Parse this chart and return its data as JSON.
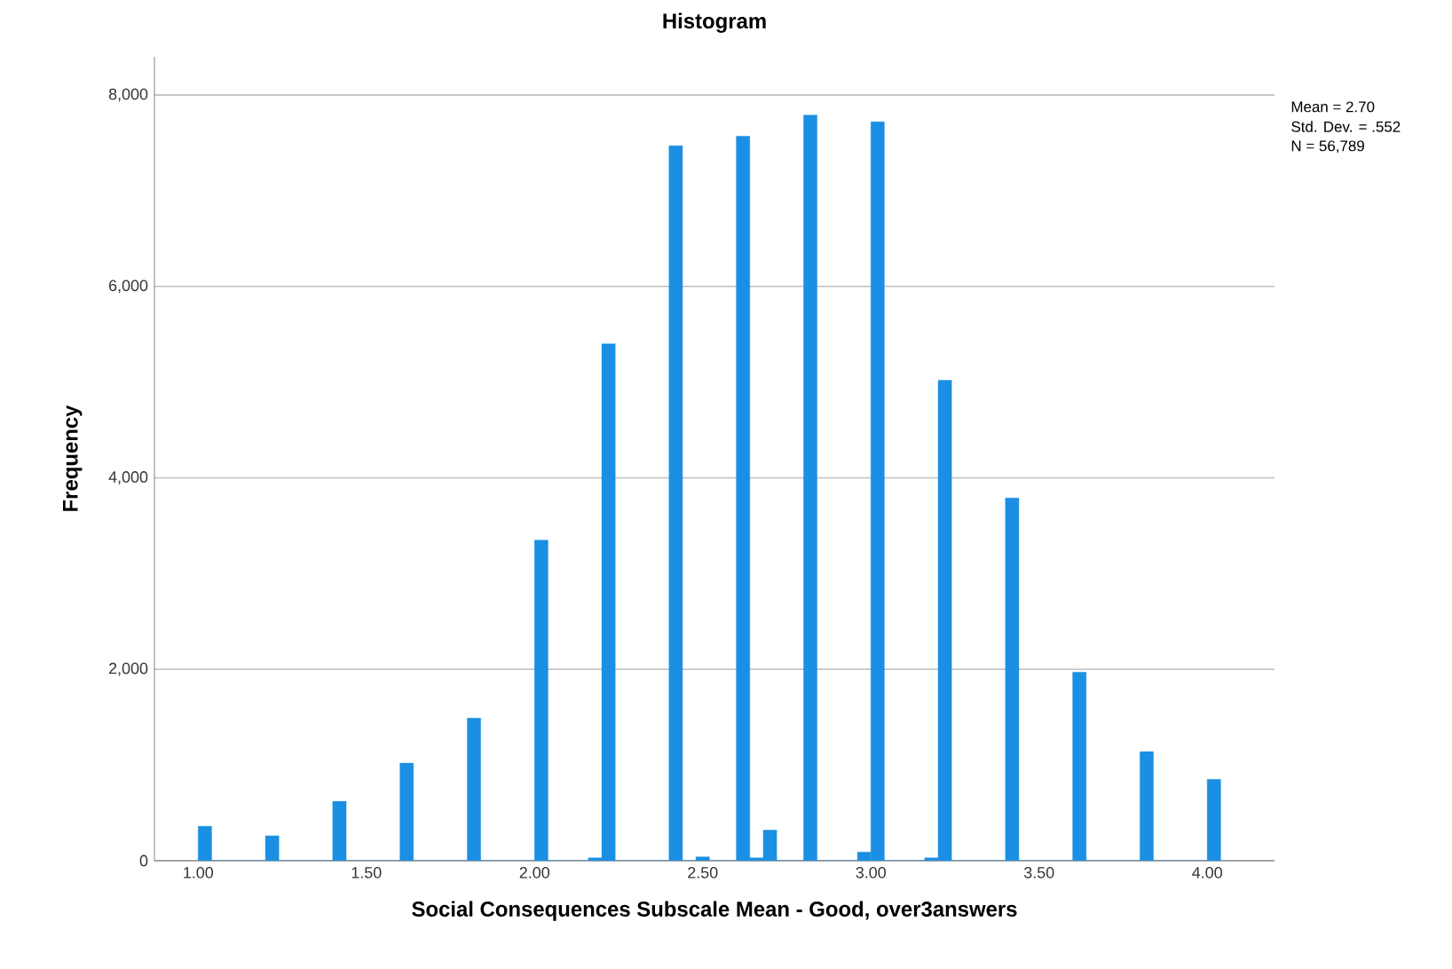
{
  "chart_data": {
    "type": "histogram",
    "title": "Histogram",
    "xlabel": "Social Consequences Subscale Mean - Good, over3answers",
    "ylabel": "Frequency",
    "bins": [
      1,
      1.04,
      1.08,
      1.12,
      1.16,
      1.2,
      1.24,
      1.28,
      1.32,
      1.36,
      1.4,
      1.44,
      1.48,
      1.52,
      1.56,
      1.6,
      1.64,
      1.68,
      1.72,
      1.76,
      1.8,
      1.84,
      1.88,
      1.92,
      1.96,
      2,
      2.04,
      2.08,
      2.12,
      2.16,
      2.2,
      2.24,
      2.28,
      2.32,
      2.36,
      2.4,
      2.44,
      2.48,
      2.52,
      2.56,
      2.6,
      2.64,
      2.68,
      2.72,
      2.76,
      2.8,
      2.84,
      2.88,
      2.92,
      2.96,
      3,
      3.04,
      3.08,
      3.12,
      3.16,
      3.2,
      3.24,
      3.28,
      3.32,
      3.36,
      3.4,
      3.44,
      3.48,
      3.52,
      3.56,
      3.6,
      3.64,
      3.68,
      3.72,
      3.76,
      3.8,
      3.84,
      3.88,
      3.92,
      3.96,
      4,
      4.04
    ],
    "values": [
      360,
      0,
      0,
      0,
      0,
      260,
      0,
      0,
      0,
      0,
      620,
      0,
      0,
      0,
      0,
      1020,
      0,
      0,
      0,
      0,
      1490,
      0,
      0,
      0,
      0,
      3350,
      0,
      0,
      0,
      30,
      5400,
      0,
      0,
      0,
      0,
      7470,
      0,
      40,
      0,
      0,
      7570,
      30,
      320,
      0,
      0,
      7790,
      0,
      0,
      0,
      90,
      7720,
      0,
      0,
      0,
      30,
      5020,
      0,
      0,
      0,
      0,
      3790,
      0,
      0,
      0,
      0,
      1970,
      0,
      0,
      0,
      0,
      1140,
      0,
      0,
      0,
      0,
      850
    ],
    "color": "#1a8fe3",
    "xlim": [
      0.87,
      4.2
    ],
    "ylim": [
      0,
      8400
    ],
    "xticks": [
      {
        "value": 1,
        "label": "1.00"
      },
      {
        "value": 1.5,
        "label": "1.50"
      },
      {
        "value": 2,
        "label": "2.00"
      },
      {
        "value": 2.5,
        "label": "2.50"
      },
      {
        "value": 3,
        "label": "3.00"
      },
      {
        "value": 3.5,
        "label": "3.50"
      },
      {
        "value": 4,
        "label": "4.00"
      }
    ],
    "yticks": [
      0,
      {
        "value": 2000,
        "label": "2,000"
      },
      {
        "value": 4000,
        "label": "4,000"
      },
      {
        "value": 6000,
        "label": "6,000"
      },
      {
        "value": 8000,
        "label": "8,000"
      }
    ],
    "grid": "y",
    "annotations": [
      "Mean = 2.70",
      "Std. Dev. = .552",
      "N = 56,789"
    ]
  }
}
